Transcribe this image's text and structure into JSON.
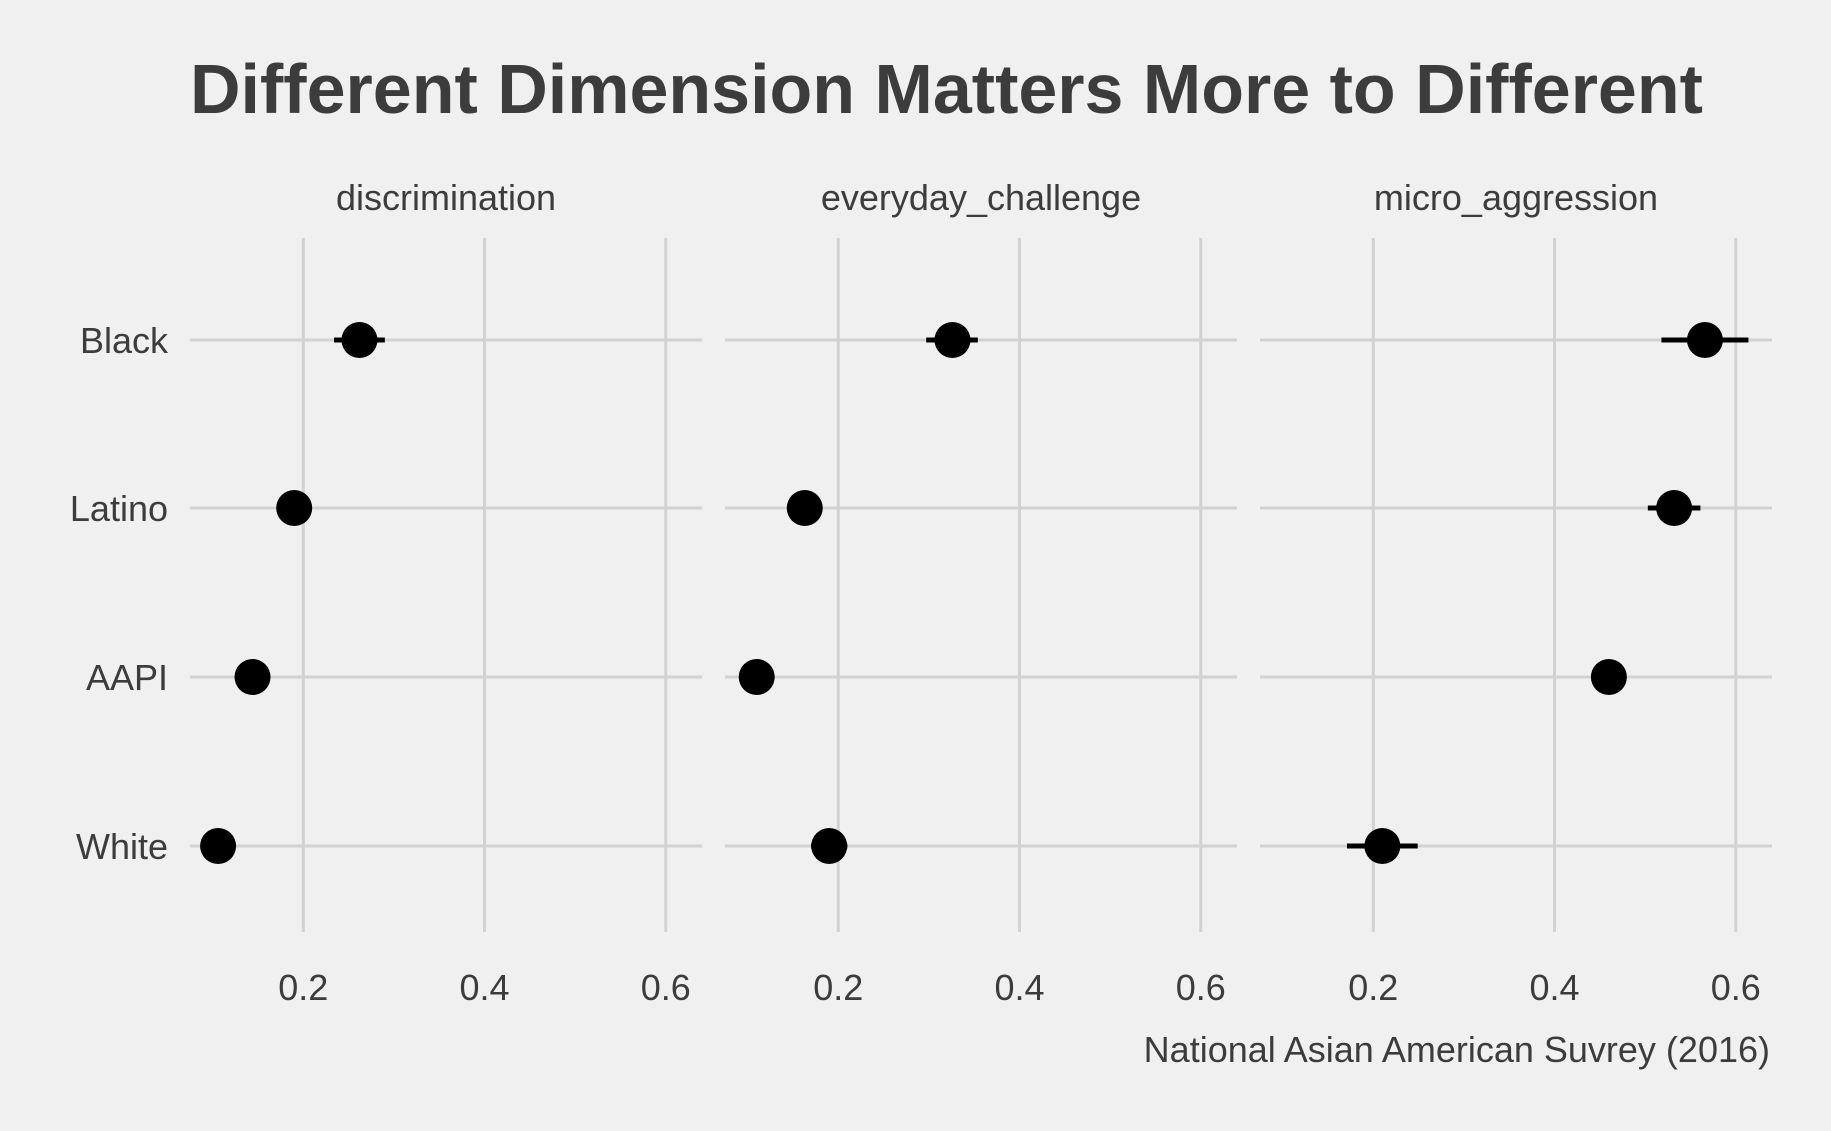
{
  "chart_data": {
    "type": "scatter",
    "title": "Different Dimension Matters More to Different",
    "caption": "National Asian American Suvrey (2016)",
    "xlabel": "",
    "ylabel": "",
    "xlim": [
      0.075,
      0.64
    ],
    "x_ticks": [
      0.2,
      0.4,
      0.6
    ],
    "x_tick_labels": [
      "0.2",
      "0.4",
      "0.6"
    ],
    "categories": [
      "Black",
      "Latino",
      "AAPI",
      "White"
    ],
    "grid": true,
    "facets": [
      {
        "name": "discrimination",
        "points": [
          {
            "group": "Black",
            "x": 0.262,
            "lo": 0.234,
            "hi": 0.29
          },
          {
            "group": "Latino",
            "x": 0.19,
            "lo": 0.186,
            "hi": 0.194
          },
          {
            "group": "AAPI",
            "x": 0.144,
            "lo": 0.141,
            "hi": 0.147
          },
          {
            "group": "White",
            "x": 0.106,
            "lo": 0.103,
            "hi": 0.109
          }
        ]
      },
      {
        "name": "everyday_challenge",
        "points": [
          {
            "group": "Black",
            "x": 0.326,
            "lo": 0.297,
            "hi": 0.354
          },
          {
            "group": "Latino",
            "x": 0.163,
            "lo": 0.159,
            "hi": 0.167
          },
          {
            "group": "AAPI",
            "x": 0.11,
            "lo": 0.107,
            "hi": 0.113
          },
          {
            "group": "White",
            "x": 0.19,
            "lo": 0.17,
            "hi": 0.21
          }
        ]
      },
      {
        "name": "micro_aggression",
        "points": [
          {
            "group": "Black",
            "x": 0.566,
            "lo": 0.518,
            "hi": 0.614
          },
          {
            "group": "Latino",
            "x": 0.532,
            "lo": 0.503,
            "hi": 0.561
          },
          {
            "group": "AAPI",
            "x": 0.46,
            "lo": 0.456,
            "hi": 0.464
          },
          {
            "group": "White",
            "x": 0.21,
            "lo": 0.171,
            "hi": 0.249
          }
        ]
      }
    ]
  },
  "colors": {
    "background": "#f0f0f0",
    "grid": "#d2d2d2",
    "point": "#000000",
    "title": "#3c3c3c",
    "text": "#3c3c3c"
  }
}
